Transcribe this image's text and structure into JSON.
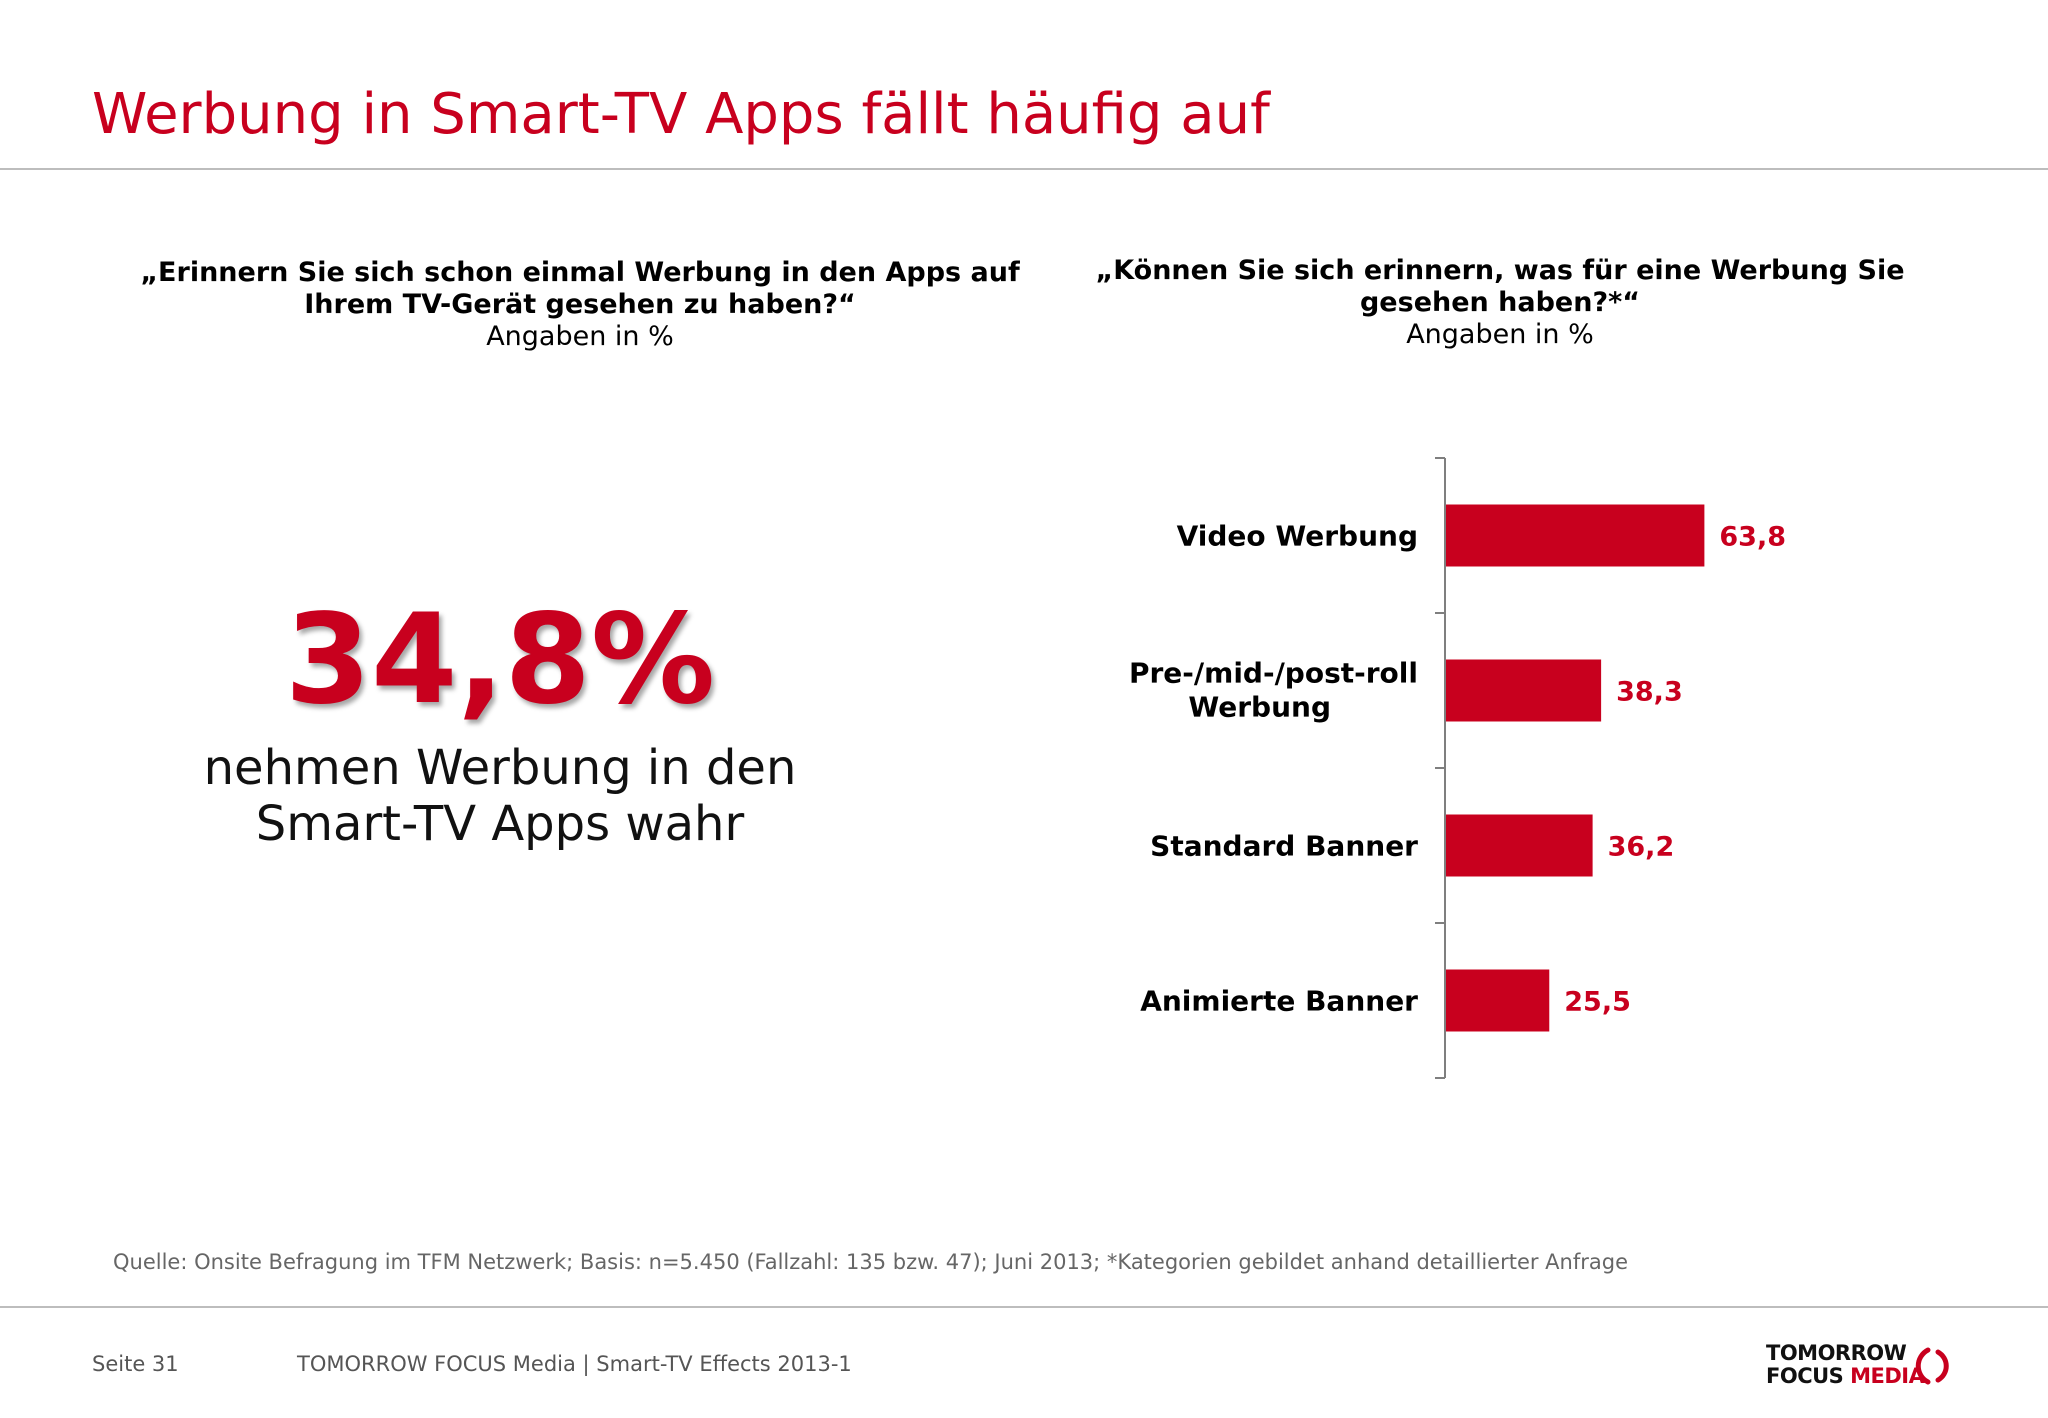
{
  "header": {
    "title": "Werbung in Smart-TV Apps fällt häufig auf"
  },
  "left_panel": {
    "question": "„Erinnern Sie sich schon einmal Werbung in den Apps auf Ihrem TV-Gerät gesehen zu haben?“",
    "subtitle": "Angaben in %",
    "big_value": "34,8%",
    "caption": "nehmen Werbung in den Smart-TV Apps wahr"
  },
  "right_panel": {
    "question": "„Können Sie sich erinnern, was für eine Werbung Sie gesehen haben?*“",
    "subtitle": "Angaben in %"
  },
  "chart_data": {
    "type": "bar",
    "orientation": "horizontal",
    "categories": [
      "Video Werbung",
      "Pre-/mid-/post-roll Werbung",
      "Standard Banner",
      "Animierte Banner"
    ],
    "values": [
      63.8,
      38.3,
      36.2,
      25.5
    ],
    "value_labels": [
      "63,8",
      "38,3",
      "36,2",
      "25,5"
    ],
    "xlim": [
      0,
      100
    ],
    "bar_color": "#c8001e",
    "label_color": "#c8001e",
    "grid": false,
    "legend": "none"
  },
  "source": "Quelle: Onsite Befragung im TFM Netzwerk; Basis: n=5.450 (Fallzahl: 135 bzw. 47); Juni 2013; *Kategorien gebildet anhand detaillierter Anfrage",
  "footer": {
    "page": "Seite 31",
    "center": "TOMORROW FOCUS Media  |  Smart-TV Effects 2013-1"
  },
  "logo": {
    "line1": "TOMORROW",
    "line2a": "FOCUS ",
    "line2b": "MEDIA"
  },
  "colors": {
    "accent": "#c8001e",
    "rule": "#bdbdbd"
  }
}
